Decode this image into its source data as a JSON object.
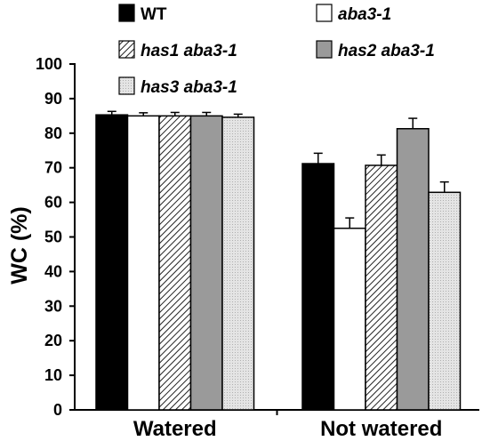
{
  "chart_data": {
    "type": "bar",
    "ylabel": "WC (%)",
    "xlabel": "",
    "ylim": [
      0,
      100
    ],
    "yticks": [
      0,
      10,
      20,
      30,
      40,
      50,
      60,
      70,
      80,
      90,
      100
    ],
    "categories": [
      "Watered",
      "Not watered"
    ],
    "legend_position": "top",
    "series": [
      {
        "name": "WT",
        "values": [
          85.3,
          71.2
        ],
        "errors": [
          1.0,
          3.0
        ],
        "fill": "#000000",
        "pattern": "solid",
        "italic": false
      },
      {
        "name": "aba3-1",
        "values": [
          85.0,
          52.5
        ],
        "errors": [
          0.9,
          3.0
        ],
        "fill": "#ffffff",
        "pattern": "solid",
        "italic": true
      },
      {
        "name": "has1 aba3-1",
        "values": [
          85.0,
          70.7
        ],
        "errors": [
          1.0,
          3.0
        ],
        "fill": "#ffffff",
        "pattern": "hatch",
        "italic": true
      },
      {
        "name": "has2 aba3-1",
        "values": [
          85.0,
          81.3
        ],
        "errors": [
          1.0,
          3.0
        ],
        "fill": "#9a9a9a",
        "pattern": "solid",
        "italic": true
      },
      {
        "name": "has3 aba3-1",
        "values": [
          84.6,
          62.9
        ],
        "errors": [
          0.9,
          3.0
        ],
        "fill": "#e2e2e2",
        "pattern": "dots",
        "italic": true
      }
    ]
  }
}
